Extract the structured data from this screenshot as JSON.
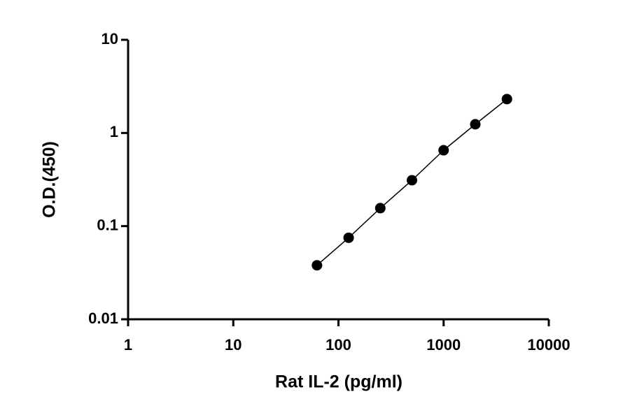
{
  "chart_data": {
    "type": "scatter",
    "line": true,
    "xlabel": "Rat IL-2 (pg/ml)",
    "ylabel": "O.D.(450)",
    "x": [
      62.5,
      125,
      250,
      500,
      1000,
      2000,
      4000
    ],
    "series": [
      {
        "color": "#000000",
        "values": [
          0.038,
          0.075,
          0.156,
          0.311,
          0.653,
          1.24,
          2.31
        ]
      }
    ],
    "xscale": "log",
    "yscale": "log",
    "xlim": [
      1,
      10000
    ],
    "ylim": [
      0.01,
      10
    ],
    "xticks": [
      1,
      10,
      100,
      1000,
      10000
    ],
    "yticks": [
      0.01,
      0.1,
      1,
      10
    ],
    "grid": false
  }
}
